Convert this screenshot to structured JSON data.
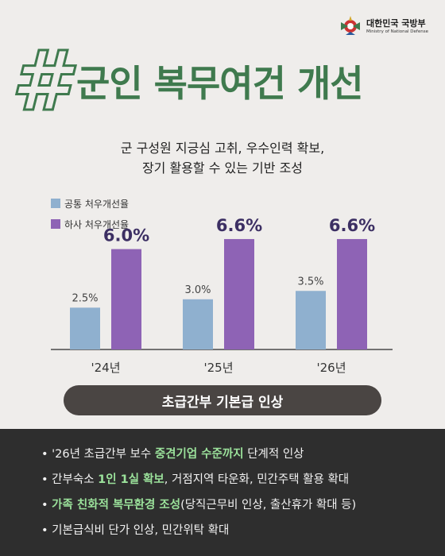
{
  "header": {
    "logo_ko": "대한민국 국방부",
    "logo_en": "Ministry of National Defense",
    "hash_symbol": "#",
    "title": "군인 복무여건 개선"
  },
  "subtitle": {
    "line1": "군 구성원 지긍심 고취, 우수인력 확보,",
    "line2": "장기 활용할 수 있는 기반 조성"
  },
  "colors": {
    "accent_green": "#3f7a4e",
    "bar_blue": "#8fb0cf",
    "bar_purple": "#8e63b5",
    "highlight_green": "#9be29b",
    "dark_panel": "#2e2e2e"
  },
  "chart_data": {
    "type": "bar",
    "categories": [
      "'24년",
      "'25년",
      "'26년"
    ],
    "series": [
      {
        "name": "공통 처우개선율",
        "values": [
          2.5,
          3.0,
          3.5
        ],
        "labels": [
          "2.5%",
          "3.0%",
          "3.5%"
        ],
        "color": "#8fb0cf"
      },
      {
        "name": "하사 처우개선율",
        "values": [
          6.0,
          6.6,
          6.6
        ],
        "labels": [
          "6.0%",
          "6.6%",
          "6.6%"
        ],
        "color": "#8e63b5"
      }
    ],
    "ylim": [
      0,
      7.5
    ],
    "grid": false,
    "legend": "top-left"
  },
  "pill_label": "초급간부 기본급 인상",
  "bullets": [
    {
      "pre": "'26년 초급간부 보수 ",
      "hl": "중견기업 수준까지",
      "post": " 단계적 인상"
    },
    {
      "pre": "간부숙소 ",
      "hl": "1인 1실 확보",
      "post": ", 거점지역 타운화, 민간주택 활용 확대"
    },
    {
      "pre": "",
      "hl": "가족 친화적 복무환경 조성",
      "post": "(당직근무비 인상, 출산휴가 확대 등)"
    },
    {
      "pre": "기본급식비 단가 인상, 민간위탁 확대",
      "hl": "",
      "post": ""
    }
  ],
  "bullet_marker": "•"
}
